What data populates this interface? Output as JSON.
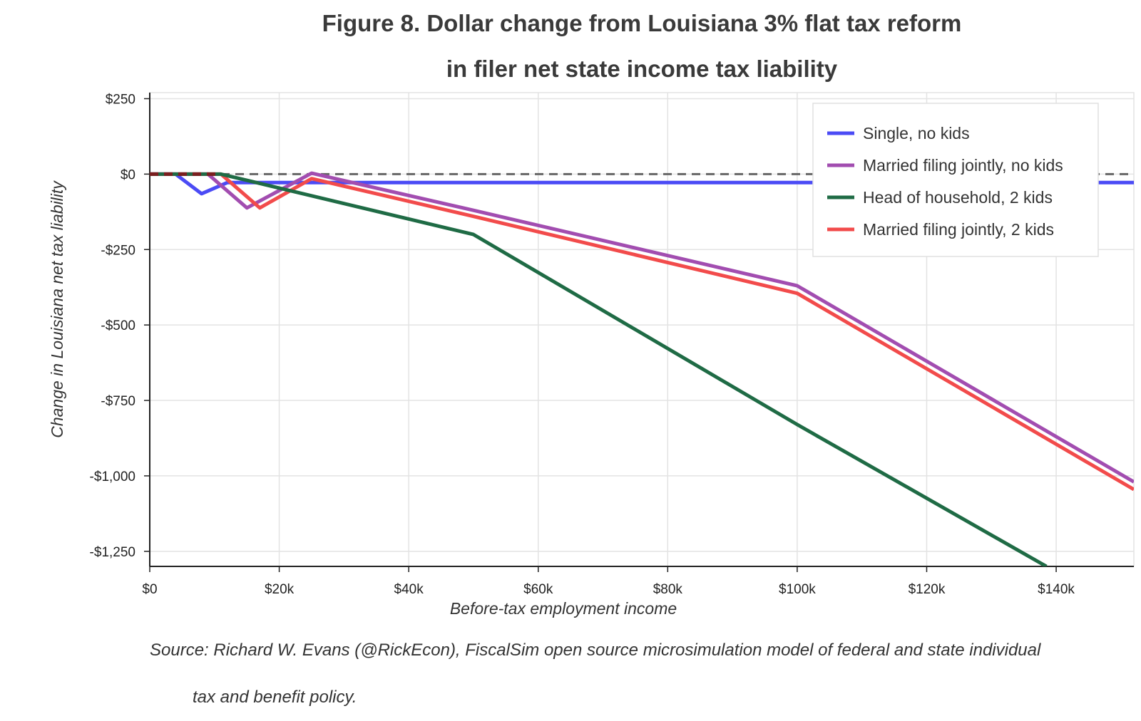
{
  "chart_data": {
    "type": "line",
    "title_line1": "Figure 8. Dollar change from Louisiana 3% flat tax reform",
    "title_line2": "in filer net state income tax liability",
    "xlabel": "Before-tax employment income",
    "ylabel": "Change in Louisiana net tax liability",
    "xlim": [
      0,
      152000
    ],
    "ylim": [
      -1300,
      270
    ],
    "x_ticks": [
      0,
      20000,
      40000,
      60000,
      80000,
      100000,
      120000,
      140000
    ],
    "x_tick_labels": [
      "$0",
      "$20k",
      "$40k",
      "$60k",
      "$80k",
      "$100k",
      "$120k",
      "$140k"
    ],
    "y_ticks": [
      250,
      0,
      -250,
      -500,
      -750,
      -1000,
      -1250
    ],
    "y_tick_labels": [
      "$250",
      "$0",
      "-$250",
      "-$500",
      "-$750",
      "-$1,000",
      "-$1,250"
    ],
    "grid": true,
    "legend_position": "top-right",
    "zero_line": "dashed",
    "series": [
      {
        "name": "Single, no kids",
        "color": "#4b4bf5",
        "x": [
          0,
          4000,
          8000,
          12000,
          152000
        ],
        "y": [
          0,
          0,
          -65,
          -28,
          -28
        ]
      },
      {
        "name": "Married filing jointly, no kids",
        "color": "#a24db0",
        "x": [
          0,
          9000,
          15000,
          25000,
          50000,
          100000,
          152000
        ],
        "y": [
          0,
          0,
          -112,
          3,
          -120,
          -370,
          -1020
        ]
      },
      {
        "name": "Head of household, 2 kids",
        "color": "#1f6b45",
        "x": [
          0,
          11000,
          50000,
          100000,
          138500
        ],
        "y": [
          0,
          0,
          -200,
          -830,
          -1300
        ]
      },
      {
        "name": "Married filing jointly, 2 kids",
        "color": "#f24b4b",
        "x": [
          0,
          11000,
          17000,
          25000,
          50000,
          100000,
          152000
        ],
        "y": [
          0,
          0,
          -112,
          -15,
          -140,
          -395,
          -1045
        ]
      }
    ]
  },
  "source_line1": "Source: Richard W. Evans (@RickEcon), FiscalSim open source microsimulation model of federal and state individual",
  "source_line2": "tax and benefit policy."
}
